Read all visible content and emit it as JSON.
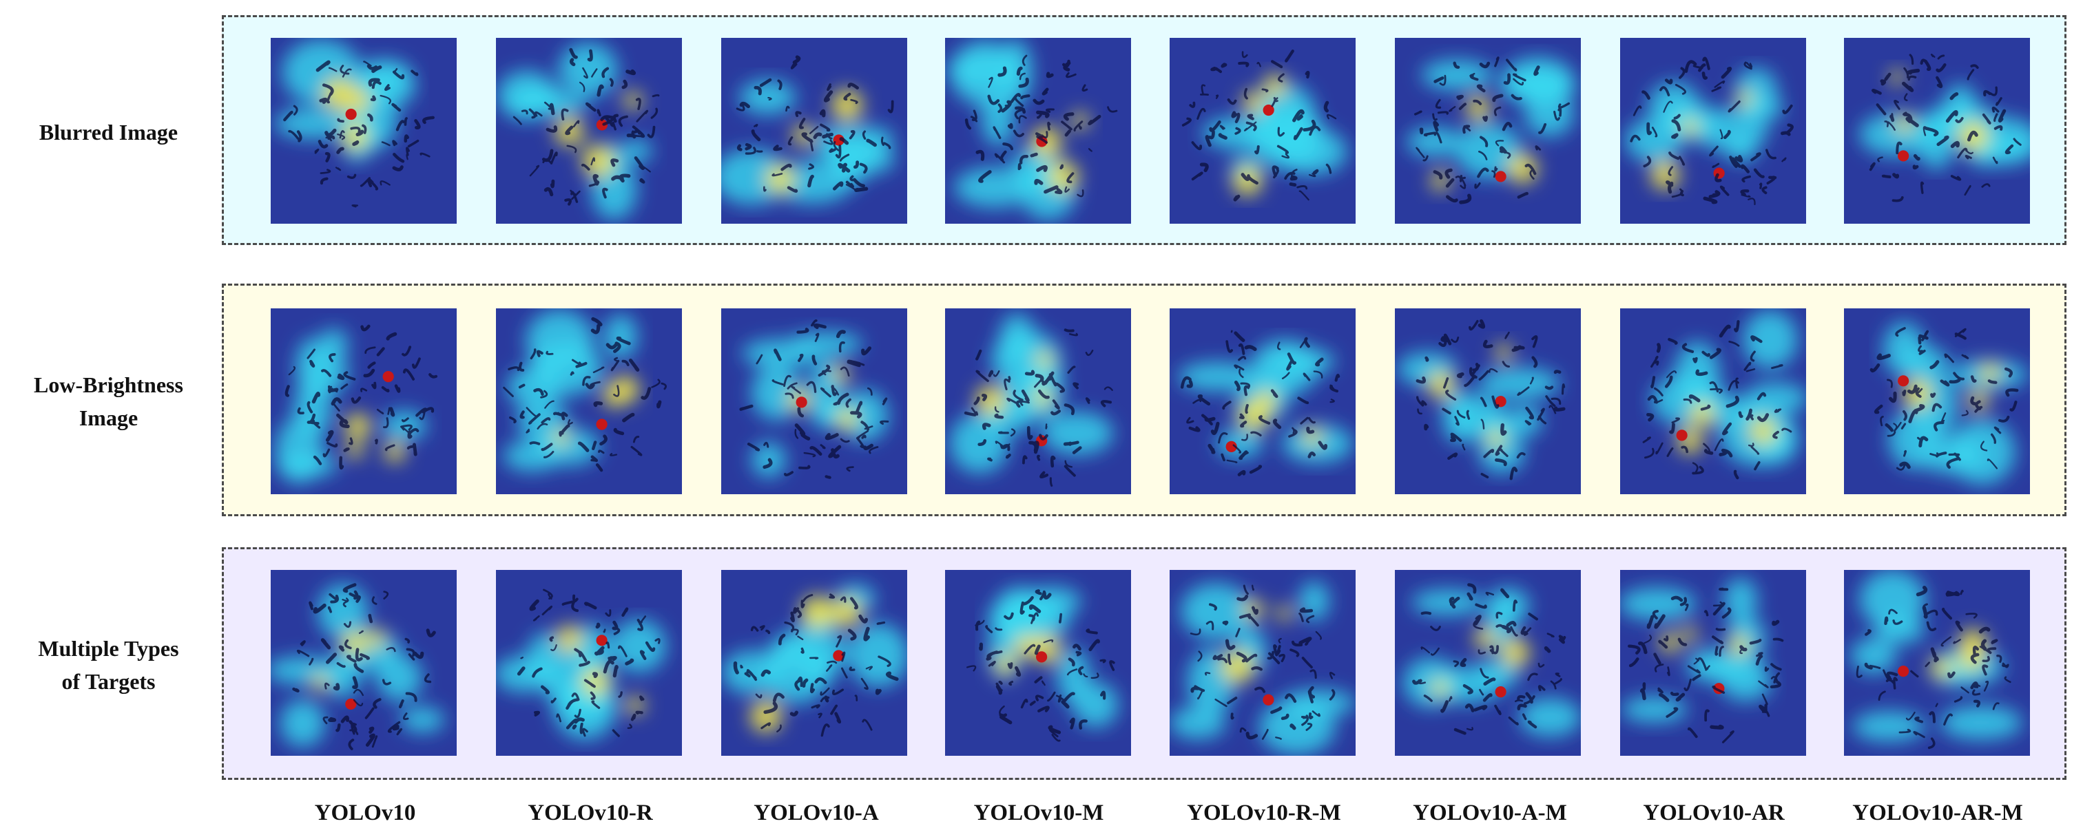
{
  "colors": {
    "row_backgrounds": [
      "#e6fcff",
      "#fffde6",
      "#efebff"
    ],
    "heat_base": "#2a3a9e",
    "heat_cyan": "#38d8f0",
    "heat_yellow": "#f2e44a",
    "heat_red": "#c81818",
    "texture": "#0a0f3c"
  },
  "rows": [
    {
      "label_lines": [
        "Blurred Image"
      ]
    },
    {
      "label_lines": [
        "Low-Brightness",
        "Image"
      ]
    },
    {
      "label_lines": [
        "Multiple  Types",
        "of  Targets"
      ]
    }
  ],
  "models": [
    "YOLOv10",
    "YOLOv10-R",
    "YOLOv10-A",
    "YOLOv10-M",
    "YOLOv10-R-M",
    "YOLOv10-A-M",
    "YOLOv10-AR",
    "YOLOv10-AR-M"
  ],
  "image_descriptions": "Grad-CAM heatmap overlays (blue-cyan-yellow-red) of densely clustered dark target shapes, one per model and condition"
}
